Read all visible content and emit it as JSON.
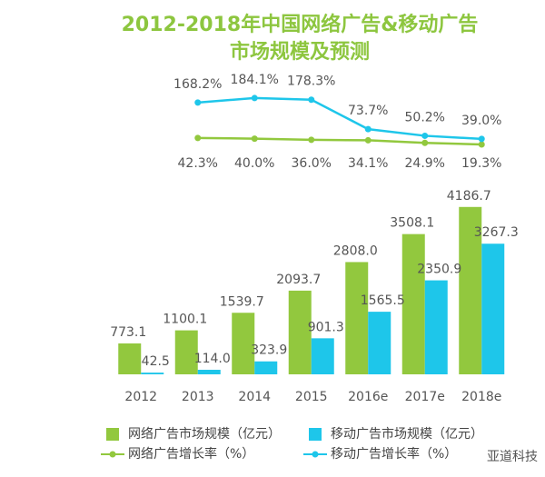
{
  "chart_data": {
    "type": "bar-line",
    "title": "2012-2018年中国网络广告&移动广告市场规模及预测",
    "categories": [
      "2012",
      "2013",
      "2014",
      "2015",
      "2016e",
      "2017e",
      "2018e"
    ],
    "series": [
      {
        "name": "网络广告市场规模（亿元）",
        "color": "#92c83e",
        "type": "bar",
        "values": [
          773.1,
          1100.1,
          1539.7,
          2093.7,
          2808.0,
          3508.1,
          4186.7
        ],
        "value_labels": [
          "773.1",
          "1100.1",
          "1539.7",
          "2093.7",
          "2808.0",
          "3508.1",
          "4186.7"
        ]
      },
      {
        "name": "移动广告市场规模（亿元）",
        "color": "#1ec6ea",
        "type": "bar",
        "values": [
          42.5,
          114.0,
          323.9,
          901.3,
          1565.5,
          2350.9,
          3267.3
        ],
        "value_labels": [
          "42.5",
          "114.0",
          "323.9",
          "901.3",
          "1565.5",
          "2350.9",
          "3267.3"
        ]
      },
      {
        "name": "网络广告增长率（%）",
        "color": "#92c83e",
        "type": "line",
        "axis": "y2",
        "values": [
          null,
          42.3,
          40.0,
          36.0,
          34.1,
          24.9,
          19.3
        ],
        "value_labels": [
          null,
          "42.3%",
          "40.0%",
          "36.0%",
          "34.1%",
          "24.9%",
          "19.3%"
        ]
      },
      {
        "name": "移动广告增长率（%）",
        "color": "#1ec6ea",
        "type": "line",
        "axis": "y2",
        "values": [
          null,
          168.2,
          184.1,
          178.3,
          73.7,
          50.2,
          39.0
        ],
        "value_labels": [
          null,
          "168.2%",
          "184.1%",
          "178.3%",
          "73.7%",
          "50.2%",
          "39.0%"
        ]
      }
    ],
    "ylim": [
      0,
      4500
    ],
    "y2lim": [
      0,
      200
    ],
    "watermark": "亚道科技"
  }
}
